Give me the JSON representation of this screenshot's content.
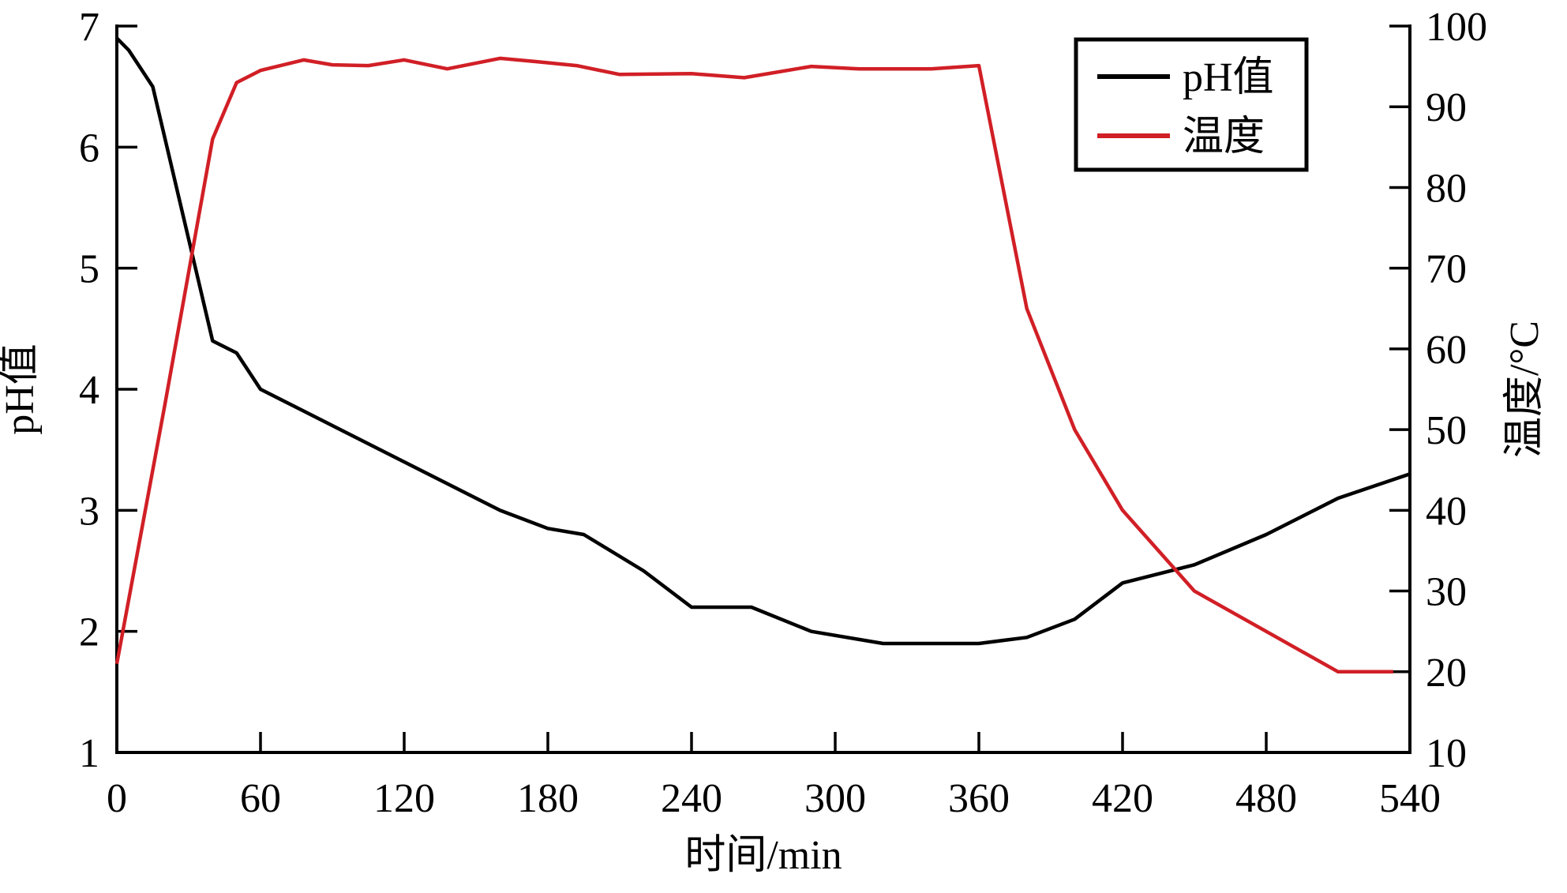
{
  "chart_data": {
    "type": "line",
    "title": "",
    "xlabel": "时间/min",
    "ylabel_left": "pH值",
    "ylabel_right": "温度/°C",
    "xlim": [
      0,
      540
    ],
    "ylim_left": [
      1,
      7
    ],
    "ylim_right": [
      10,
      100
    ],
    "x_ticks": [
      0,
      60,
      120,
      180,
      240,
      300,
      360,
      420,
      480,
      540
    ],
    "left_ticks": [
      1,
      2,
      3,
      4,
      5,
      6,
      7
    ],
    "right_ticks": [
      10,
      20,
      30,
      40,
      50,
      60,
      70,
      80,
      90,
      100
    ],
    "grid": false,
    "legend_position": "top-right-inside",
    "colors": {
      "ph": "#000000",
      "temperature": "#d11f26",
      "axis": "#000000",
      "background": "#ffffff"
    },
    "legend": [
      {
        "key": "ph",
        "label": "pH值",
        "color": "#000000"
      },
      {
        "key": "temperature",
        "label": "温度",
        "color": "#d11f26"
      }
    ],
    "series": [
      {
        "name": "pH值",
        "key": "ph",
        "axis": "left",
        "color": "#000000",
        "points": [
          [
            0,
            6.9
          ],
          [
            5,
            6.8
          ],
          [
            15,
            6.5
          ],
          [
            40,
            4.4
          ],
          [
            50,
            4.3
          ],
          [
            60,
            4.0
          ],
          [
            90,
            3.7
          ],
          [
            120,
            3.4
          ],
          [
            160,
            3.0
          ],
          [
            180,
            2.85
          ],
          [
            195,
            2.8
          ],
          [
            220,
            2.5
          ],
          [
            240,
            2.2
          ],
          [
            265,
            2.2
          ],
          [
            290,
            2.0
          ],
          [
            320,
            1.9
          ],
          [
            360,
            1.9
          ],
          [
            380,
            1.95
          ],
          [
            400,
            2.1
          ],
          [
            420,
            2.4
          ],
          [
            450,
            2.55
          ],
          [
            480,
            2.8
          ],
          [
            510,
            3.1
          ],
          [
            540,
            3.3
          ]
        ]
      },
      {
        "name": "温度",
        "key": "temperature",
        "axis": "right",
        "color": "#d11f26",
        "points": [
          [
            0,
            21
          ],
          [
            20,
            53
          ],
          [
            40,
            86
          ],
          [
            50,
            93
          ],
          [
            60,
            94.5
          ],
          [
            78,
            95.8
          ],
          [
            90,
            95.2
          ],
          [
            105,
            95.1
          ],
          [
            120,
            95.8
          ],
          [
            138,
            94.7
          ],
          [
            160,
            96.0
          ],
          [
            175,
            95.6
          ],
          [
            192,
            95.1
          ],
          [
            210,
            94.0
          ],
          [
            240,
            94.1
          ],
          [
            262,
            93.6
          ],
          [
            290,
            95.0
          ],
          [
            310,
            94.7
          ],
          [
            340,
            94.7
          ],
          [
            360,
            95.1
          ],
          [
            380,
            65
          ],
          [
            400,
            50
          ],
          [
            420,
            40
          ],
          [
            450,
            30
          ],
          [
            480,
            25
          ],
          [
            510,
            20
          ],
          [
            533,
            20
          ]
        ]
      }
    ]
  }
}
